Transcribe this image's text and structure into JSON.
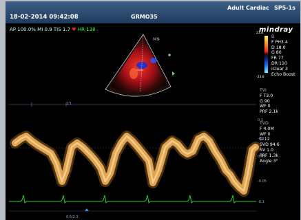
{
  "header": {
    "datetime": "18-02-2014 09:42:08",
    "probe_id": "GRMO35",
    "mode": "Adult Cardiac",
    "probe": "SP5-1s"
  },
  "status": {
    "ap": "AP 100.0%",
    "mi": "MI 0.9",
    "tis": "TIS 1.7",
    "hr": "HR 138"
  },
  "image": {
    "sector_label": "M9",
    "scale_label": "1/1",
    "zoom_label": "0.6/2.3"
  },
  "right_panel": {
    "logo": "mindray",
    "colorbar": {
      "top": "23.8",
      "bottom": "-23.8"
    },
    "b_params": [
      "B",
      "F PH3.4",
      "D 18.0",
      "G 80",
      "FR 77",
      "DR 110",
      "iClear 3",
      "Echo Boost"
    ],
    "tvi_params": [
      "TVI",
      "F T3.0",
      "G 90",
      "WF 0",
      "PRF 2.1k"
    ],
    "tvd_params": [
      "TVD",
      "F 4.0M",
      "WF 0",
      "G 12",
      "SVD 94.6",
      "SV 1.0",
      "PRF 1.3k",
      "Angle 3°"
    ]
  },
  "doppler_scale": [
    "0.1",
    "-0.1",
    "0.05",
    "-0.05",
    "-0.1"
  ],
  "colors": {
    "topbar": "#2a4a70",
    "waveform": "#f2b35a",
    "ecg": "#2ecc40",
    "hr": "#3cff3c"
  }
}
